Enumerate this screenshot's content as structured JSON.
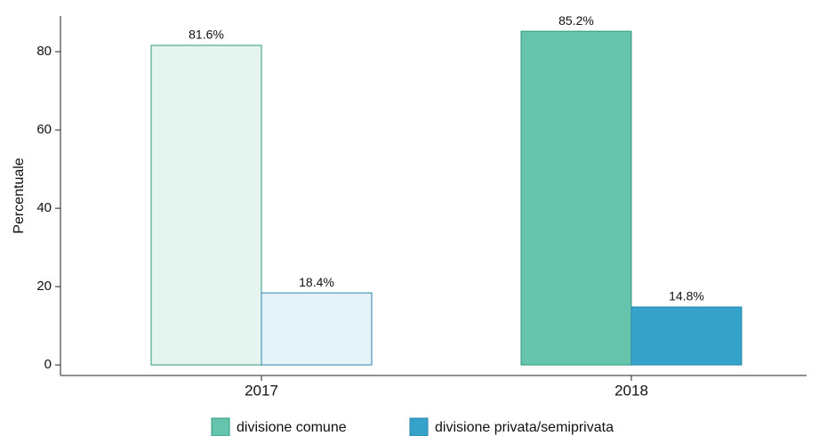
{
  "chart_data": {
    "type": "bar",
    "y_label": "Percentuale",
    "categories": [
      "2017",
      "2018"
    ],
    "series": [
      {
        "name": "divisione comune",
        "color": "#66c4ad",
        "point_colors": [
          "#e6f4f0",
          "#66c4ad"
        ],
        "edge_color": "#2a9a80",
        "values": [
          81.6,
          85.2
        ],
        "value_labels": [
          "81.6%",
          "85.2%"
        ]
      },
      {
        "name": "divisione privata/semiprivata",
        "color": "#35a3c9",
        "point_colors": [
          "#e5f2f8",
          "#35a3c9"
        ],
        "edge_color": "#2a86ab",
        "values": [
          18.4,
          14.8
        ],
        "value_labels": [
          "18.4%",
          "14.8%"
        ]
      }
    ],
    "ylim": [
      -2.7,
      89.1
    ],
    "yticks": [
      0,
      20,
      40,
      60,
      80
    ],
    "grid": false,
    "legend": "bottom"
  }
}
